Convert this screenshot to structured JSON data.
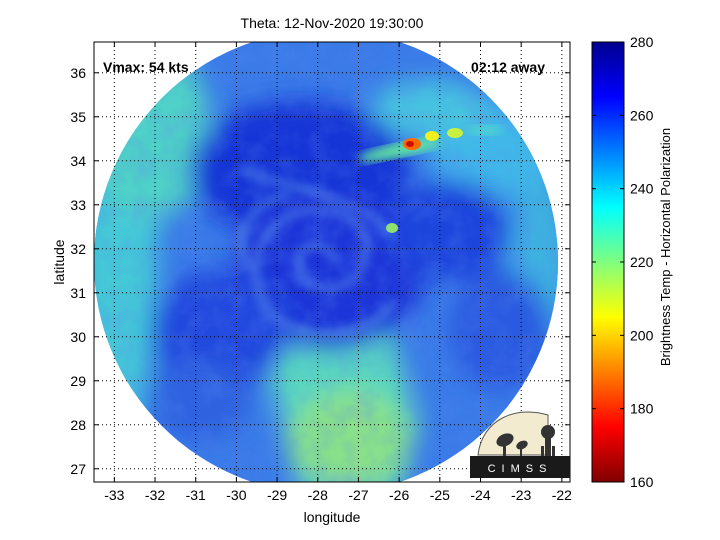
{
  "chart_data": {
    "type": "heatmap",
    "title": "Theta: 12-Nov-2020 19:30:00",
    "xlabel": "longitude",
    "ylabel": "latitude",
    "xlim": [
      -33.5,
      -21.8
    ],
    "ylim": [
      26.7,
      36.7
    ],
    "x_ticks": [
      -33,
      -32,
      -31,
      -30,
      -29,
      -28,
      -27,
      -26,
      -25,
      -24,
      -23,
      -22
    ],
    "y_ticks": [
      27,
      28,
      29,
      30,
      31,
      32,
      33,
      34,
      35,
      36
    ],
    "grid": true,
    "annotations": {
      "vmax": "Vmax: 54 kts",
      "time_offset": "02:12 away"
    },
    "colorbar": {
      "label": "Brightness Temp - Horizontal Polarization",
      "range": [
        160,
        280
      ],
      "ticks": [
        160,
        180,
        200,
        220,
        240,
        260,
        280
      ],
      "colormap": "jet"
    },
    "storm_center": {
      "lon": -27.6,
      "lat": 31.7
    },
    "warm_band": {
      "lon_range": [
        -31,
        -29.5
      ],
      "lat_range": [
        26.7,
        36.7
      ],
      "value": 245
    },
    "cold_cells": [
      {
        "lon": -25.8,
        "lat": 34.4,
        "value": 185
      },
      {
        "lon": -25.3,
        "lat": 34.6,
        "value": 215
      },
      {
        "lon": -24.5,
        "lat": 34.6,
        "value": 228
      },
      {
        "lon": -25.9,
        "lat": 32.6,
        "value": 232
      }
    ],
    "logo_text": "CIMSS"
  }
}
